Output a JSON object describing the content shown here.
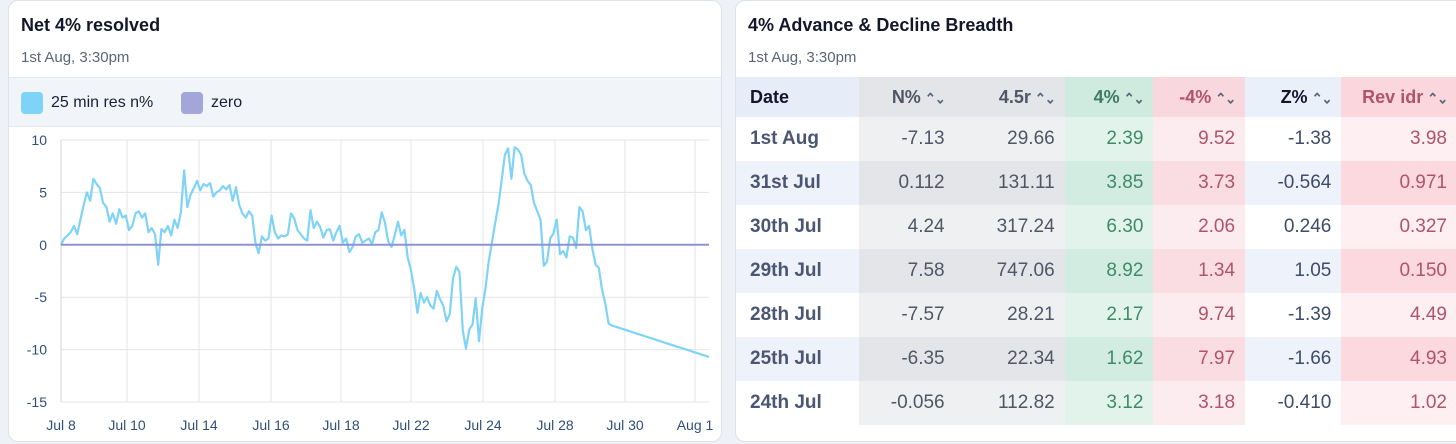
{
  "left_panel": {
    "title": "Net 4% resolved",
    "subtitle": "1st Aug, 3:30pm",
    "legend": [
      {
        "label": "25 min res n%",
        "color": "#7fd3f7"
      },
      {
        "label": "zero",
        "color": "#a3a6d8"
      }
    ]
  },
  "chart_data": {
    "type": "line",
    "title": "Net 4% resolved",
    "subtitle": "1st Aug, 3:30pm",
    "xlabel": "",
    "ylabel": "",
    "ylim": [
      -15,
      10
    ],
    "y_ticks": [
      10,
      5,
      0,
      -5,
      -10,
      -15
    ],
    "x_ticks": [
      "Jul 8",
      "Jul 10",
      "Jul 14",
      "Jul 16",
      "Jul 18",
      "Jul 22",
      "Jul 24",
      "Jul 28",
      "Jul 30",
      "Aug 1"
    ],
    "grid": true,
    "series": [
      {
        "name": "25 min res n%",
        "color": "#7fd3f7",
        "x": [
          0,
          0.3,
          0.6,
          0.9,
          1.2,
          1.5,
          1.8,
          2.1,
          2.4,
          2.7,
          3.0,
          3.3,
          3.6,
          3.9,
          4.2,
          4.5,
          4.8,
          5.1,
          5.4,
          5.7,
          6.0,
          6.3,
          6.6,
          6.9,
          7.2,
          7.5,
          7.8,
          8.1,
          8.4,
          8.7,
          9.0,
          9.3,
          9.6,
          9.9,
          10.2,
          10.5,
          10.8,
          11.1,
          11.4,
          11.7,
          12.0,
          12.3,
          12.6,
          12.9,
          13.2,
          13.5,
          13.8,
          14.1,
          14.4,
          14.7,
          15.0,
          15.3,
          15.6,
          15.9,
          16.2,
          16.5,
          16.8,
          17.1,
          17.4,
          17.7,
          18.0,
          18.3,
          18.6,
          18.9,
          19.2,
          19.5,
          19.8,
          20.1,
          20.4,
          20.7,
          21.0,
          21.3,
          21.6,
          21.9,
          22.2,
          22.5,
          22.8,
          23.1,
          23.4,
          23.7,
          24.0,
          24.3,
          24.6,
          24.9,
          25.2,
          25.5,
          25.8,
          26.1,
          26.4,
          26.7,
          27.0,
          27.3,
          27.6,
          27.9,
          28.2,
          28.5,
          28.8,
          29.1,
          29.4,
          29.7,
          30.0,
          30.3,
          30.6,
          30.9,
          31.2,
          31.5,
          31.8,
          32.1,
          32.4,
          32.7,
          33.0,
          33.3,
          33.6,
          33.9,
          34.2,
          34.5,
          34.8,
          35.1,
          35.4,
          35.7,
          36.0,
          36.3,
          36.6,
          36.9,
          37.2,
          37.5,
          37.8,
          38.1,
          38.4,
          38.7,
          39.0,
          39.3,
          39.6,
          39.9,
          40.2,
          40.5,
          40.8,
          41.1,
          41.4,
          41.7,
          42.0,
          42.3,
          42.6,
          42.9,
          43.2,
          43.5,
          43.8,
          44.1,
          44.4,
          44.7,
          45.0,
          45.3,
          45.6,
          45.9,
          46.2,
          46.5,
          46.8,
          47.1,
          47.4,
          47.7,
          48.0,
          48.3,
          48.6,
          48.9,
          49.2,
          49.5,
          49.8,
          50.1,
          50.4,
          50.7,
          51.0,
          51.3,
          51.6,
          51.9,
          52.2,
          52.5,
          52.8,
          53.1,
          53.4,
          53.7,
          54.0,
          54.3,
          54.6,
          54.9,
          55.2,
          55.5,
          55.8,
          56.1,
          56.4,
          56.7,
          57.0,
          57.3,
          57.6,
          57.9,
          58.2,
          58.5,
          58.8,
          59.1,
          59.4,
          59.7,
          60.0
        ],
        "y": [
          0.0,
          0.6,
          0.9,
          1.2,
          1.8,
          1.0,
          2.4,
          3.8,
          5.0,
          4.2,
          6.3,
          5.8,
          5.4,
          4.0,
          3.6,
          2.2,
          3.0,
          2.0,
          3.4,
          2.6,
          2.8,
          1.4,
          1.8,
          3.0,
          3.2,
          2.6,
          3.0,
          1.2,
          1.6,
          1.0,
          -1.9,
          1.5,
          1.2,
          1.8,
          0.9,
          2.4,
          1.6,
          3.1,
          7.1,
          3.6,
          4.8,
          5.4,
          6.1,
          5.2,
          5.8,
          5.6,
          5.9,
          4.6,
          5.0,
          5.2,
          5.6,
          5.3,
          5.7,
          4.2,
          5.5,
          3.8,
          3.0,
          2.6,
          3.2,
          2.8,
          0.2,
          -0.8,
          0.8,
          0.4,
          0.6,
          2.8,
          1.2,
          0.6,
          0.9,
          0.8,
          1.0,
          3.0,
          2.5,
          1.4,
          1.0,
          0.6,
          0.4,
          3.3,
          1.6,
          2.2,
          1.7,
          0.7,
          1.4,
          1.5,
          0.4,
          1.2,
          1.8,
          0.2,
          0.6,
          -0.7,
          -0.2,
          0.8,
          1.0,
          0.2,
          0.4,
          0.6,
          0.1,
          1.2,
          1.4,
          3.1,
          2.1,
          0.3,
          -0.2,
          0.9,
          2.2,
          0.9,
          1.4,
          -1.2,
          -2.4,
          -4.2,
          -6.5,
          -4.6,
          -5.5,
          -5.0,
          -5.8,
          -6.1,
          -4.4,
          -5.2,
          -5.8,
          -7.3,
          -6.6,
          -3.2,
          -2.1,
          -2.6,
          -8.2,
          -9.9,
          -8.1,
          -7.6,
          -5.1,
          -9.2,
          -6.1,
          -4.2,
          -1.6,
          0.2,
          2.1,
          3.8,
          6.1,
          8.6,
          9.2,
          6.3,
          9.3,
          9.1,
          8.6,
          6.8,
          6.1,
          5.7,
          4.0,
          3.2,
          2.4,
          -2.0,
          -1.6,
          0.6,
          1.1,
          2.4,
          -0.9,
          -0.6,
          -1.2,
          0.8,
          0.7,
          -0.3,
          3.6,
          3.2,
          1.4,
          1.8,
          -0.4,
          -1.9,
          -2.2,
          -4.3,
          -5.6,
          -7.5,
          -7.7,
          -7.8,
          -7.9,
          -8.0,
          -8.1,
          -8.2,
          -8.3,
          -8.4,
          -8.5,
          -8.6,
          -8.7,
          -8.8,
          -8.9,
          -9.0,
          -9.1,
          -9.2,
          -9.3,
          -9.4,
          -9.5,
          -9.6,
          -9.7,
          -9.8,
          -9.9,
          -10.0,
          -10.1,
          -10.2,
          -10.3,
          -10.4,
          -10.5,
          -10.6,
          -10.7
        ]
      },
      {
        "name": "zero",
        "color": "#8d92d2",
        "x": [
          0,
          60
        ],
        "y": [
          0,
          0
        ]
      }
    ]
  },
  "right_panel": {
    "title": "4% Advance & Decline Breadth",
    "subtitle": "1st Aug, 3:30pm",
    "sort_glyph": "⌃⌄",
    "columns": [
      "Date",
      "N%",
      "4.5r",
      "4%",
      "-4%",
      "Z%",
      "Rev idr"
    ],
    "rows": [
      [
        "1st Aug",
        "-7.13",
        "29.66",
        "2.39",
        "9.52",
        "-1.38",
        "3.98"
      ],
      [
        "31st Jul",
        "0.112",
        "131.11",
        "3.85",
        "3.73",
        "-0.564",
        "0.971"
      ],
      [
        "30th Jul",
        "4.24",
        "317.24",
        "6.30",
        "2.06",
        "0.246",
        "0.327"
      ],
      [
        "29th Jul",
        "7.58",
        "747.06",
        "8.92",
        "1.34",
        "1.05",
        "0.150"
      ],
      [
        "28th Jul",
        "-7.57",
        "28.21",
        "2.17",
        "9.74",
        "-1.39",
        "4.49"
      ],
      [
        "25th Jul",
        "-6.35",
        "22.34",
        "1.62",
        "7.97",
        "-1.66",
        "4.93"
      ],
      [
        "24th Jul",
        "-0.056",
        "112.82",
        "3.12",
        "3.18",
        "-0.410",
        "1.02"
      ]
    ]
  }
}
